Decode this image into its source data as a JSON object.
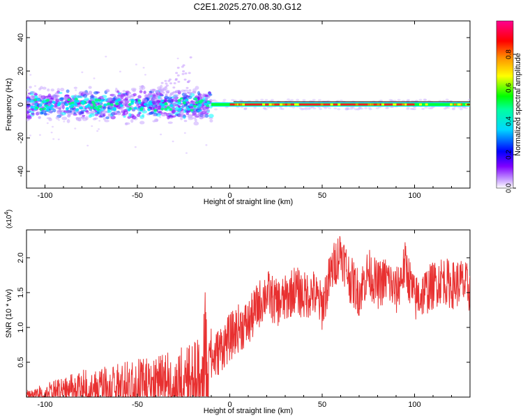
{
  "title": "C2E1.2025.270.08.30.G12",
  "chart_data": [
    {
      "type": "heatmap",
      "name": "spectrogram",
      "xlabel": "Height of straight line (km)",
      "ylabel": "Frequency (Hz)",
      "xlim": [
        -110,
        130
      ],
      "ylim": [
        -50,
        50
      ],
      "xticks": [
        -100,
        -50,
        0,
        50,
        100
      ],
      "yticks": [
        40,
        20,
        0,
        -20,
        -40
      ],
      "colorbar": {
        "label": "Normalized spectral amplitude",
        "range": [
          0.0,
          1.0
        ],
        "ticks": [
          "0.0",
          "0.2",
          "0.4",
          "0.6",
          "0.8"
        ],
        "colors": [
          "#ffffff",
          "#7f00ff",
          "#0000ff",
          "#00ffff",
          "#00ff00",
          "#ffff00",
          "#ff8000",
          "#ff0000",
          "#ff0080"
        ]
      },
      "features": [
        {
          "x_range": [
            -110,
            -10
          ],
          "center_hz": 0,
          "spread_hz": 6,
          "amplitude": "low-mid (blue/green clusters)"
        },
        {
          "x_range": [
            -10,
            130
          ],
          "center_hz": 0,
          "spread_hz": 1,
          "amplitude": "high (red/orange line)"
        },
        {
          "x_range": [
            -40,
            -20
          ],
          "center_hz": 20,
          "spread_hz": 10,
          "amplitude": "faint purple scatter"
        }
      ]
    },
    {
      "type": "line",
      "name": "snr",
      "xlabel": "Height of straight line (km)",
      "ylabel": "SNR (10 * v/v)",
      "multiplier": "(x10",
      "multiplier_exp": "4",
      "multiplier_close": ")",
      "xlim": [
        -110,
        130
      ],
      "ylim": [
        0,
        2.4
      ],
      "xticks": [
        -100,
        -50,
        0,
        50,
        100
      ],
      "yticks": [
        "0.5",
        "1.0",
        "1.5",
        "2.0"
      ],
      "ytick_values": [
        0.5,
        1.0,
        1.5,
        2.0
      ],
      "series": [
        {
          "name": "SNR",
          "color": "#e83030",
          "x": [
            -110,
            -100,
            -90,
            -80,
            -70,
            -60,
            -50,
            -40,
            -30,
            -20,
            -15,
            -12,
            -10,
            -5,
            0,
            5,
            10,
            15,
            20,
            25,
            30,
            35,
            40,
            45,
            50,
            55,
            60,
            65,
            70,
            75,
            80,
            85,
            90,
            95,
            100,
            105,
            110,
            115,
            120,
            125,
            130
          ],
          "values": [
            0.05,
            0.1,
            0.15,
            0.2,
            0.22,
            0.25,
            0.28,
            0.3,
            0.35,
            0.4,
            0.45,
            1.2,
            0.5,
            0.7,
            0.85,
            1.0,
            1.05,
            1.3,
            1.5,
            1.35,
            1.4,
            1.55,
            1.45,
            1.5,
            1.3,
            1.8,
            2.1,
            1.7,
            1.5,
            1.8,
            1.6,
            1.7,
            1.5,
            1.9,
            1.4,
            1.5,
            1.6,
            1.7,
            1.6,
            1.65,
            1.55
          ],
          "noise": 0.35
        }
      ]
    }
  ]
}
